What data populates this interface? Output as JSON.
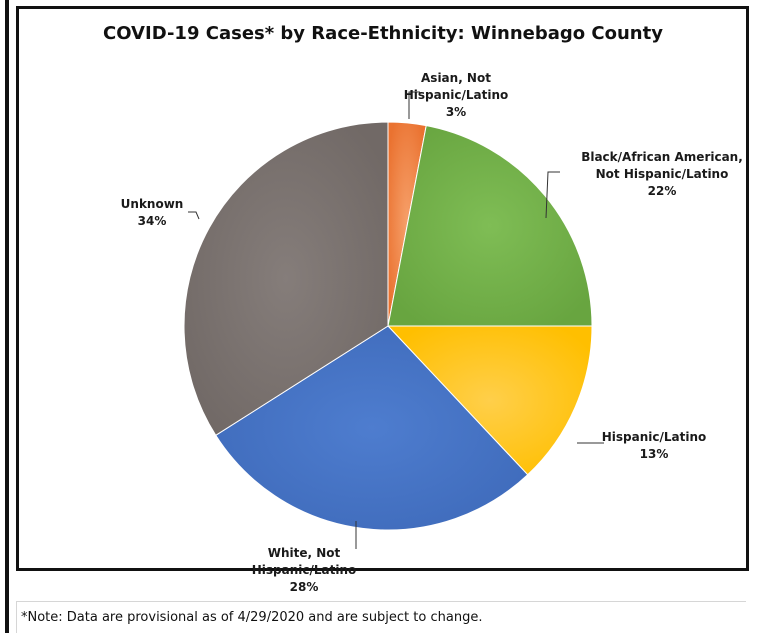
{
  "chart_data": {
    "type": "pie",
    "title": "COVID-19 Cases* by Race-Ethnicity: Winnebago County",
    "slices": [
      {
        "label_lines": [
          "Asian, Not",
          "Hispanic/Latino"
        ],
        "value": 3,
        "pct_label": "3%",
        "color": "#ee7d3c"
      },
      {
        "label_lines": [
          "Black/African American,",
          "Not Hispanic/Latino"
        ],
        "value": 22,
        "pct_label": "22%",
        "color": "#70ad47"
      },
      {
        "label_lines": [
          "Hispanic/Latino"
        ],
        "value": 13,
        "pct_label": "13%",
        "color": "#ffc000"
      },
      {
        "label_lines": [
          "White, Not",
          "Hispanic/Latino"
        ],
        "value": 28,
        "pct_label": "28%",
        "color": "#4472c4"
      },
      {
        "label_lines": [
          "Unknown"
        ],
        "value": 34,
        "pct_label": "34%",
        "color": "#7b7370"
      }
    ],
    "start_angle_deg": 0,
    "direction": "clockwise",
    "legend": "none",
    "labels": "outside-with-leader-lines"
  },
  "note": "*Note: Data are provisional as of 4/29/2020 and are subject to change."
}
